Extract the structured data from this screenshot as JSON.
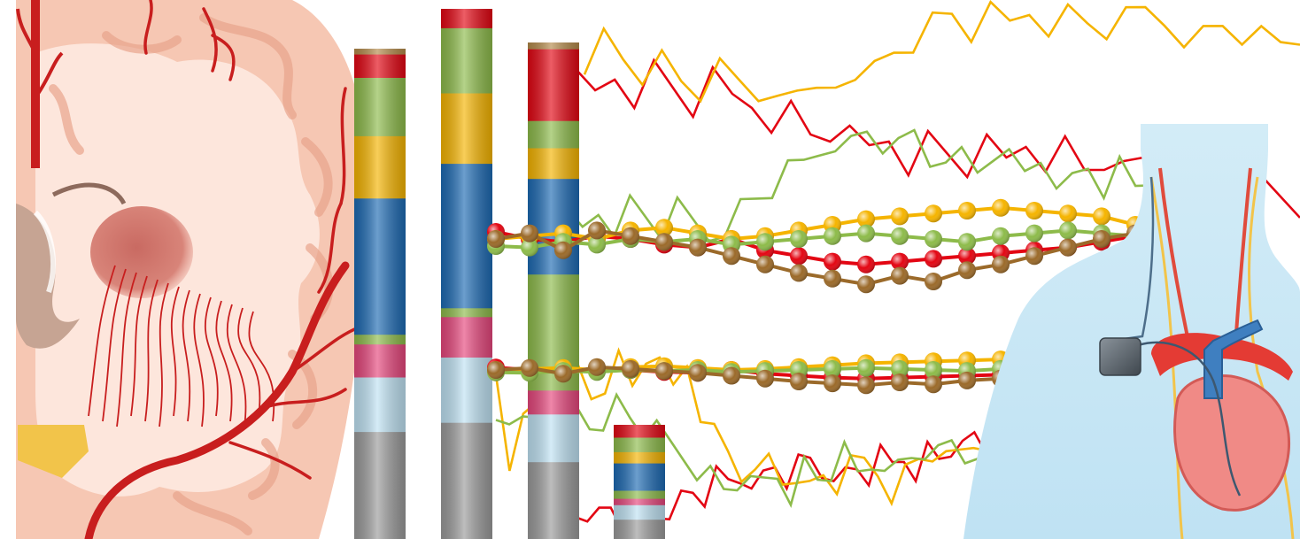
{
  "colors": {
    "background": "#ffffff",
    "red": "#e30613",
    "orange": "#f5b400",
    "green": "#8dbb4a",
    "brown": "#9b6a2a",
    "blue": "#1d6ab3",
    "pink": "#e6467c",
    "light_blue": "#bfe2f3",
    "gray": "#9a9a9a",
    "tan": "#b48a4a",
    "brain_pink": "#f6c7b3",
    "brain_light": "#fde6dc",
    "artery": "#c81e1e",
    "body_blue": "#c9e7f4",
    "heart": "#f08a86",
    "vein_blue": "#3f7fc0",
    "device": "#5c6670"
  },
  "bars": [
    {
      "segments": [
        [
          "tan",
          0.03
        ],
        [
          "red",
          0.12
        ],
        [
          "green",
          0.3
        ],
        [
          "orange",
          0.32
        ],
        [
          "blue",
          0.7
        ],
        [
          "green",
          0.05
        ],
        [
          "pink",
          0.17
        ],
        [
          "light_blue",
          0.28
        ],
        [
          "gray",
          0.55
        ]
      ]
    },
    {
      "segments": [
        [
          "red",
          0.11
        ],
        [
          "green",
          0.37
        ],
        [
          "orange",
          0.4
        ],
        [
          "blue",
          0.82
        ],
        [
          "green",
          0.05
        ],
        [
          "pink",
          0.23
        ],
        [
          "light_blue",
          0.37
        ],
        [
          "gray",
          0.66
        ]
      ]
    },
    {
      "segments": [
        [
          "tan",
          0.04
        ],
        [
          "red",
          0.42
        ],
        [
          "green",
          0.16
        ],
        [
          "orange",
          0.18
        ],
        [
          "blue",
          0.56
        ],
        [
          "green",
          0.68
        ],
        [
          "pink",
          0.14
        ],
        [
          "light_blue",
          0.28
        ],
        [
          "gray",
          0.45
        ]
      ]
    },
    {
      "segments": [
        [
          "red",
          0.08
        ],
        [
          "green",
          0.09
        ],
        [
          "orange",
          0.07
        ],
        [
          "blue",
          0.17
        ],
        [
          "green",
          0.05
        ],
        [
          "pink",
          0.04
        ],
        [
          "light_blue",
          0.09
        ],
        [
          "gray",
          0.12
        ]
      ]
    }
  ],
  "series": {
    "red": [
      0.18,
      0.24,
      0.12,
      0.22,
      0.1,
      0.2,
      0.3,
      0.17,
      0.26,
      0.28,
      0.36,
      0.33,
      0.46,
      0.44,
      0.5,
      0.55,
      0.47,
      0.6,
      0.5,
      0.57,
      0.64,
      0.55,
      0.62,
      0.5,
      0.58,
      0.53,
      0.66,
      0.6,
      0.7,
      0.62,
      0.74,
      0.68,
      0.8,
      0.7,
      0.88,
      0.78,
      0.84,
      0.9
    ],
    "orange": [
      0.62,
      0.2,
      0.35,
      0.46,
      0.4,
      0.55,
      0.62,
      0.5,
      0.58,
      0.66,
      0.54,
      0.7,
      0.6,
      0.52,
      0.66,
      0.44,
      0.3,
      0.22,
      0.12,
      0.05,
      0.18,
      0.08,
      0.14,
      0.02,
      0.1,
      0.06,
      0.12,
      0.16,
      0.12,
      0.04,
      0.1,
      0.18,
      0.22,
      0.14,
      0.2,
      0.26,
      0.3,
      0.24
    ],
    "green": [
      0.78,
      0.82,
      0.7,
      0.76,
      0.68,
      0.74,
      0.8,
      0.72,
      0.78,
      0.84,
      0.76,
      0.7,
      0.64,
      0.58,
      0.52,
      0.46,
      0.38,
      0.3,
      0.36,
      0.28,
      0.34,
      0.4,
      0.3,
      0.44,
      0.36,
      0.42,
      0.5,
      0.38,
      0.46,
      0.52,
      0.42,
      0.5,
      0.56,
      0.48,
      0.58,
      0.5,
      0.6,
      0.54
    ]
  },
  "bead_chains": [
    {
      "color": "red",
      "values": [
        0.45,
        0.5,
        0.52,
        0.48,
        0.5,
        0.54,
        0.56,
        0.5,
        0.58,
        0.62,
        0.66,
        0.68,
        0.66,
        0.64,
        0.62,
        0.6,
        0.58,
        0.56,
        0.52,
        0.48,
        0.46
      ]
    },
    {
      "color": "orange",
      "values": [
        0.5,
        0.48,
        0.46,
        0.5,
        0.44,
        0.42,
        0.46,
        0.5,
        0.48,
        0.44,
        0.4,
        0.36,
        0.34,
        0.32,
        0.3,
        0.28,
        0.3,
        0.32,
        0.34,
        0.4,
        0.46
      ]
    },
    {
      "color": "green",
      "values": [
        0.55,
        0.56,
        0.52,
        0.54,
        0.5,
        0.52,
        0.5,
        0.54,
        0.52,
        0.5,
        0.48,
        0.46,
        0.48,
        0.5,
        0.52,
        0.48,
        0.46,
        0.44,
        0.46,
        0.48,
        0.42
      ]
    },
    {
      "color": "brown",
      "values": [
        0.5,
        0.46,
        0.58,
        0.44,
        0.48,
        0.52,
        0.56,
        0.62,
        0.68,
        0.74,
        0.78,
        0.82,
        0.76,
        0.8,
        0.72,
        0.68,
        0.62,
        0.56,
        0.5,
        0.46,
        0.5
      ]
    }
  ]
}
